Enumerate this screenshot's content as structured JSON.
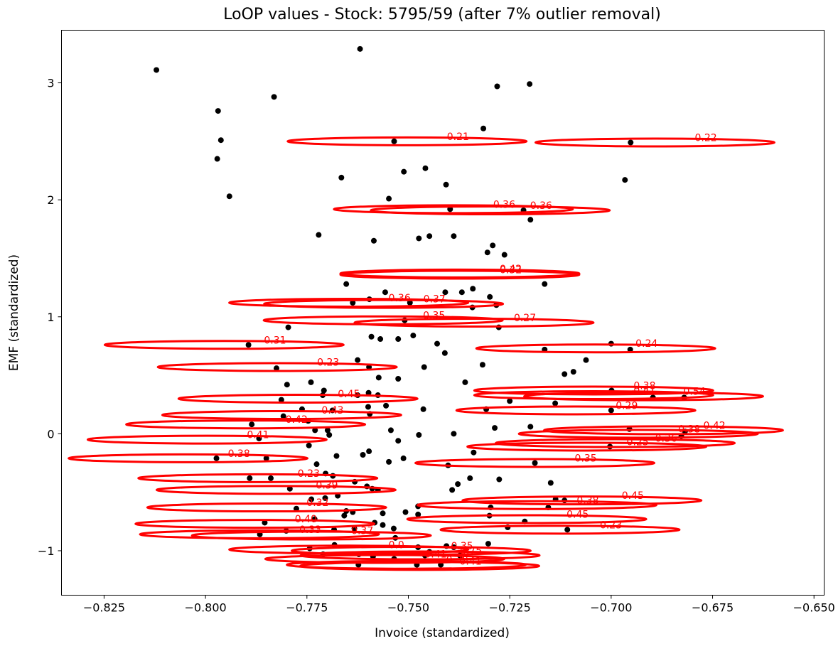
{
  "chart_data": {
    "type": "scatter",
    "title": "LoOP values - Stock: 5795/59 (after 7% outlier removal)",
    "xlabel": "Invoice (standardized)",
    "ylabel": "EMF (standardized)",
    "xlim": [
      -0.8355,
      -0.6475
    ],
    "ylim": [
      -1.38,
      3.45
    ],
    "xticks": [
      -0.825,
      -0.8,
      -0.775,
      -0.75,
      -0.725,
      -0.7,
      -0.675,
      -0.65
    ],
    "xtick_labels": [
      "−0.825",
      "−0.800",
      "−0.775",
      "−0.750",
      "−0.725",
      "−0.700",
      "−0.675",
      "−0.650"
    ],
    "yticks": [
      -1,
      0,
      1,
      2,
      3
    ],
    "ytick_labels": [
      "−1",
      "0",
      "1",
      "2",
      "3"
    ],
    "grid": false,
    "point_color": "#000000",
    "ellipse_color": "#ff0000",
    "points": [
      [
        -0.8121,
        3.11
      ],
      [
        -0.7969,
        2.76
      ],
      [
        -0.7962,
        2.51
      ],
      [
        -0.7971,
        2.35
      ],
      [
        -0.7941,
        2.03
      ],
      [
        -0.7831,
        2.88
      ],
      [
        -0.7619,
        3.29
      ],
      [
        -0.7281,
        2.97
      ],
      [
        -0.7201,
        2.99
      ],
      [
        -0.7315,
        2.61
      ],
      [
        -0.7535,
        2.5
      ],
      [
        -0.6952,
        2.49
      ],
      [
        -0.6966,
        2.17
      ],
      [
        -0.7665,
        2.19
      ],
      [
        -0.7511,
        2.24
      ],
      [
        -0.7458,
        2.27
      ],
      [
        -0.7407,
        2.13
      ],
      [
        -0.7548,
        2.01
      ],
      [
        -0.7397,
        1.92
      ],
      [
        -0.7199,
        1.83
      ],
      [
        -0.7216,
        1.91
      ],
      [
        -0.7721,
        1.7
      ],
      [
        -0.7585,
        1.65
      ],
      [
        -0.7474,
        1.67
      ],
      [
        -0.7448,
        1.69
      ],
      [
        -0.7388,
        1.69
      ],
      [
        -0.7292,
        1.61
      ],
      [
        -0.7263,
        1.53
      ],
      [
        -0.7305,
        1.55
      ],
      [
        -0.7653,
        1.28
      ],
      [
        -0.7557,
        1.21
      ],
      [
        -0.7409,
        1.21
      ],
      [
        -0.7368,
        1.21
      ],
      [
        -0.7341,
        1.24
      ],
      [
        -0.7299,
        1.17
      ],
      [
        -0.7164,
        1.28
      ],
      [
        -0.7637,
        1.12
      ],
      [
        -0.7596,
        1.15
      ],
      [
        -0.7496,
        1.12
      ],
      [
        -0.7342,
        1.08
      ],
      [
        -0.7283,
        1.1
      ],
      [
        -0.7509,
        0.97
      ],
      [
        -0.7277,
        0.91
      ],
      [
        -0.7796,
        0.91
      ],
      [
        -0.7894,
        0.76
      ],
      [
        -0.7591,
        0.83
      ],
      [
        -0.7569,
        0.81
      ],
      [
        -0.7525,
        0.81
      ],
      [
        -0.7488,
        0.84
      ],
      [
        -0.7429,
        0.77
      ],
      [
        -0.741,
        0.69
      ],
      [
        -0.7164,
        0.72
      ],
      [
        -0.7,
        0.77
      ],
      [
        -0.6953,
        0.72
      ],
      [
        -0.7825,
        0.56
      ],
      [
        -0.7625,
        0.63
      ],
      [
        -0.7597,
        0.57
      ],
      [
        -0.7573,
        0.48
      ],
      [
        -0.7525,
        0.47
      ],
      [
        -0.7461,
        0.57
      ],
      [
        -0.7317,
        0.59
      ],
      [
        -0.7062,
        0.63
      ],
      [
        -0.7115,
        0.51
      ],
      [
        -0.7093,
        0.53
      ],
      [
        -0.7799,
        0.42
      ],
      [
        -0.774,
        0.44
      ],
      [
        -0.7708,
        0.37
      ],
      [
        -0.7711,
        0.33
      ],
      [
        -0.7598,
        0.35
      ],
      [
        -0.7575,
        0.33
      ],
      [
        -0.736,
        0.44
      ],
      [
        -0.7813,
        0.29
      ],
      [
        -0.7762,
        0.21
      ],
      [
        -0.7687,
        0.2
      ],
      [
        -0.7625,
        0.33
      ],
      [
        -0.7599,
        0.23
      ],
      [
        -0.7595,
        0.17
      ],
      [
        -0.7555,
        0.24
      ],
      [
        -0.7463,
        0.21
      ],
      [
        -0.7308,
        0.21
      ],
      [
        -0.725,
        0.28
      ],
      [
        -0.7138,
        0.26
      ],
      [
        -0.7,
        0.2
      ],
      [
        -0.6999,
        0.37
      ],
      [
        -0.6897,
        0.31
      ],
      [
        -0.682,
        0.31
      ],
      [
        -0.7808,
        0.15
      ],
      [
        -0.7886,
        0.08
      ],
      [
        -0.7747,
        0.11
      ],
      [
        -0.773,
        0.03
      ],
      [
        -0.7699,
        0.03
      ],
      [
        -0.7543,
        0.03
      ],
      [
        -0.7388,
        0.0
      ],
      [
        -0.7287,
        0.05
      ],
      [
        -0.7199,
        0.06
      ],
      [
        -0.6955,
        0.04
      ],
      [
        -0.6818,
        0.02
      ],
      [
        -0.6827,
        -0.02
      ],
      [
        -0.7868,
        -0.04
      ],
      [
        -0.7745,
        -0.1
      ],
      [
        -0.7695,
        -0.01
      ],
      [
        -0.7597,
        -0.15
      ],
      [
        -0.7525,
        -0.06
      ],
      [
        -0.7474,
        -0.01
      ],
      [
        -0.7339,
        -0.16
      ],
      [
        -0.7003,
        -0.11
      ],
      [
        -0.7973,
        -0.21
      ],
      [
        -0.785,
        -0.21
      ],
      [
        -0.7726,
        -0.26
      ],
      [
        -0.7677,
        -0.19
      ],
      [
        -0.7612,
        -0.18
      ],
      [
        -0.7548,
        -0.24
      ],
      [
        -0.7512,
        -0.21
      ],
      [
        -0.7402,
        -0.27
      ],
      [
        -0.7188,
        -0.25
      ],
      [
        -0.7891,
        -0.38
      ],
      [
        -0.7839,
        -0.38
      ],
      [
        -0.7704,
        -0.34
      ],
      [
        -0.7686,
        -0.36
      ],
      [
        -0.7632,
        -0.41
      ],
      [
        -0.7602,
        -0.45
      ],
      [
        -0.7589,
        -0.47
      ],
      [
        -0.7575,
        -0.48
      ],
      [
        -0.7378,
        -0.43
      ],
      [
        -0.7348,
        -0.38
      ],
      [
        -0.7276,
        -0.39
      ],
      [
        -0.7792,
        -0.47
      ],
      [
        -0.7739,
        -0.56
      ],
      [
        -0.7674,
        -0.53
      ],
      [
        -0.7392,
        -0.48
      ],
      [
        -0.7149,
        -0.42
      ],
      [
        -0.7137,
        -0.56
      ],
      [
        -0.7776,
        -0.64
      ],
      [
        -0.7705,
        -0.55
      ],
      [
        -0.7653,
        -0.66
      ],
      [
        -0.7637,
        -0.67
      ],
      [
        -0.7507,
        -0.67
      ],
      [
        -0.7476,
        -0.62
      ],
      [
        -0.7297,
        -0.63
      ],
      [
        -0.7155,
        -0.63
      ],
      [
        -0.7854,
        -0.76
      ],
      [
        -0.7731,
        -0.73
      ],
      [
        -0.7658,
        -0.7
      ],
      [
        -0.7563,
        -0.68
      ],
      [
        -0.7536,
        -0.81
      ],
      [
        -0.7476,
        -0.69
      ],
      [
        -0.73,
        -0.7
      ],
      [
        -0.7255,
        -0.8
      ],
      [
        -0.7213,
        -0.75
      ],
      [
        -0.7115,
        -0.57
      ],
      [
        -0.7108,
        -0.82
      ],
      [
        -0.7866,
        -0.86
      ],
      [
        -0.7801,
        -0.83
      ],
      [
        -0.7683,
        -0.82
      ],
      [
        -0.7633,
        -0.81
      ],
      [
        -0.7583,
        -0.76
      ],
      [
        -0.7563,
        -0.78
      ],
      [
        -0.7532,
        -0.89
      ],
      [
        -0.7476,
        -0.97
      ],
      [
        -0.7448,
        -1.01
      ],
      [
        -0.7743,
        -0.98
      ],
      [
        -0.771,
        -1.03
      ],
      [
        -0.7682,
        -0.95
      ],
      [
        -0.7622,
        -1.03
      ],
      [
        -0.7587,
        -1.05
      ],
      [
        -0.7535,
        -1.07
      ],
      [
        -0.7479,
        -1.12
      ],
      [
        -0.7459,
        -1.04
      ],
      [
        -0.742,
        -1.12
      ],
      [
        -0.7388,
        -0.97
      ],
      [
        -0.7303,
        -0.94
      ],
      [
        -0.7623,
        -1.12
      ],
      [
        -0.7406,
        -0.96
      ],
      [
        -0.7373,
        -1.04
      ]
    ],
    "ellipses": [
      {
        "cx": -0.7503,
        "cy": 2.5,
        "label": "0.21"
      },
      {
        "cx": -0.6892,
        "cy": 2.49,
        "label": "0.22"
      },
      {
        "cx": -0.7389,
        "cy": 1.92,
        "label": "0.36"
      },
      {
        "cx": -0.7298,
        "cy": 1.91,
        "label": "0.36"
      },
      {
        "cx": -0.7373,
        "cy": 1.37,
        "label": "0.42"
      },
      {
        "cx": -0.7373,
        "cy": 1.36,
        "label": "0.32"
      },
      {
        "cx": -0.7647,
        "cy": 1.12,
        "label": "0.36"
      },
      {
        "cx": -0.7561,
        "cy": 1.11,
        "label": "0.37"
      },
      {
        "cx": -0.7562,
        "cy": 0.97,
        "label": "0.35"
      },
      {
        "cx": -0.7338,
        "cy": 0.95,
        "label": "0.27"
      },
      {
        "cx": -0.7954,
        "cy": 0.76,
        "label": "0.31"
      },
      {
        "cx": -0.7038,
        "cy": 0.73,
        "label": "0.24"
      },
      {
        "cx": -0.7823,
        "cy": 0.57,
        "label": "0.23"
      },
      {
        "cx": -0.7772,
        "cy": 0.3,
        "label": "0.45"
      },
      {
        "cx": -0.7043,
        "cy": 0.37,
        "label": "0.38"
      },
      {
        "cx": -0.7043,
        "cy": 0.33,
        "label": "0.41"
      },
      {
        "cx": -0.692,
        "cy": 0.32,
        "label": "0.54"
      },
      {
        "cx": -0.7812,
        "cy": 0.16,
        "label": "0.43"
      },
      {
        "cx": -0.7087,
        "cy": 0.2,
        "label": "0.29"
      },
      {
        "cx": -0.7901,
        "cy": 0.08,
        "label": "0.42"
      },
      {
        "cx": -0.6871,
        "cy": 0.03,
        "label": "0.42"
      },
      {
        "cx": -0.6933,
        "cy": 0.0,
        "label": "0.38"
      },
      {
        "cx": -0.7996,
        "cy": -0.05,
        "label": "0.41"
      },
      {
        "cx": -0.699,
        "cy": -0.08,
        "label": "0.36"
      },
      {
        "cx": -0.706,
        "cy": -0.11,
        "label": "0.25"
      },
      {
        "cx": -0.8043,
        "cy": -0.21,
        "label": "0.38"
      },
      {
        "cx": -0.7188,
        "cy": -0.25,
        "label": "0.35"
      },
      {
        "cx": -0.7871,
        "cy": -0.38,
        "label": "0.23"
      },
      {
        "cx": -0.7826,
        "cy": -0.48,
        "label": "0.39"
      },
      {
        "cx": -0.7072,
        "cy": -0.57,
        "label": "0.45"
      },
      {
        "cx": -0.7183,
        "cy": -0.61,
        "label": "0.38"
      },
      {
        "cx": -0.7849,
        "cy": -0.63,
        "label": "0.32"
      },
      {
        "cx": -0.7208,
        "cy": -0.73,
        "label": "0.45"
      },
      {
        "cx": -0.7878,
        "cy": -0.77,
        "label": "0.40"
      },
      {
        "cx": -0.7126,
        "cy": -0.82,
        "label": "0.23"
      },
      {
        "cx": -0.7867,
        "cy": -0.86,
        "label": "0.33"
      },
      {
        "cx": -0.7739,
        "cy": -0.87,
        "label": "0.37"
      },
      {
        "cx": -0.7647,
        "cy": -0.99,
        "label": "0.0"
      },
      {
        "cx": -0.7493,
        "cy": -1.0,
        "label": "0.35"
      },
      {
        "cx": -0.7471,
        "cy": -1.04,
        "label": "0.75"
      },
      {
        "cx": -0.7558,
        "cy": -1.07,
        "label": "0.41"
      },
      {
        "cx": -0.7505,
        "cy": -1.12,
        "label": "0.30"
      },
      {
        "cx": -0.7472,
        "cy": -1.13,
        "label": "0.41"
      }
    ]
  }
}
